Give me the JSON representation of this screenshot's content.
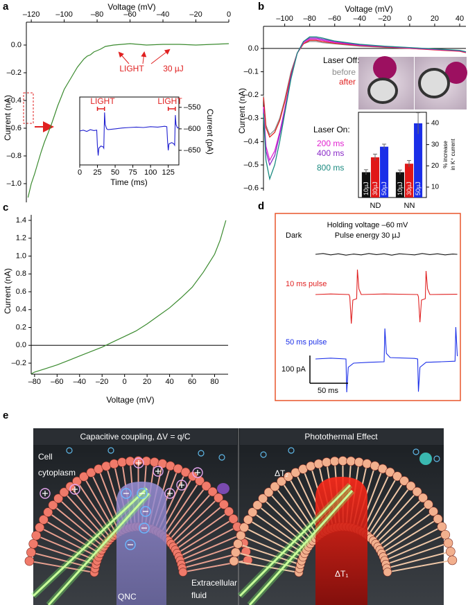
{
  "chart_data": [
    {
      "type": "line",
      "panel": "a",
      "x_label": "Voltage (mV)",
      "y_label": "Current (nA)",
      "xlim": [
        -123,
        0
      ],
      "xticks": [
        {
          "value": -120,
          "label": "–120"
        },
        {
          "value": -100,
          "label": "–100"
        },
        {
          "value": -80,
          "label": "–80"
        },
        {
          "value": -60,
          "label": "–60"
        },
        {
          "value": -40,
          "label": "–40"
        },
        {
          "value": -20,
          "label": "–20"
        },
        0
      ],
      "ylim": [
        -1.135,
        0.165
      ],
      "yticks": [
        {
          "value": 0,
          "label": "0.0"
        },
        {
          "value": -0.2,
          "label": "–0.2"
        },
        {
          "value": -0.4,
          "label": "–0.4"
        },
        {
          "value": -0.6,
          "label": "–0.6"
        },
        {
          "value": -0.8,
          "label": "–0.8"
        },
        {
          "value": -1.0,
          "label": "–1.0"
        }
      ],
      "color": "#3a8a2e",
      "x": [
        -122,
        -120,
        -118,
        -116,
        -114,
        -112,
        -110,
        -108,
        -106,
        -104,
        -102,
        -100,
        -98,
        -96,
        -94,
        -92,
        -90,
        -88,
        -86,
        -84,
        -82,
        -80,
        -78,
        -75,
        -70,
        -65,
        -60,
        -50,
        -40,
        -30,
        -20,
        -10,
        0
      ],
      "values": [
        -1.1,
        -1.0,
        -0.93,
        -0.85,
        -0.77,
        -0.7,
        -0.64,
        -0.58,
        -0.51,
        -0.44,
        -0.38,
        -0.32,
        -0.28,
        -0.24,
        -0.2,
        -0.16,
        -0.13,
        -0.1,
        -0.08,
        -0.07,
        -0.05,
        -0.04,
        -0.03,
        -0.01,
        0,
        0.005,
        0.01,
        0,
        0.005,
        0.005,
        0,
        0.005,
        0.01
      ],
      "annotations": [
        "LIGHT",
        "30 µJ"
      ],
      "annotation_color": "#e02020"
    },
    {
      "type": "line",
      "x_label": "Time (ms)",
      "y_label": "Current (pA)",
      "xlim": [
        0,
        140
      ],
      "xticks": [
        0,
        25,
        50,
        75,
        100,
        125
      ],
      "ylim": [
        -684,
        -526
      ],
      "yticks": [
        {
          "value": -550,
          "label": "–550"
        },
        {
          "value": -600,
          "label": "–600"
        },
        {
          "value": -650,
          "label": "–650"
        }
      ],
      "color": "#1f1fd0",
      "x": [
        0,
        5,
        10,
        15,
        20,
        24,
        25,
        26,
        27,
        30,
        33,
        34,
        35,
        36,
        38,
        40,
        50,
        60,
        70,
        80,
        90,
        100,
        110,
        120,
        123,
        124,
        125,
        126,
        130,
        133,
        134,
        135,
        136,
        138,
        140
      ],
      "values": [
        -605,
        -603,
        -606,
        -602,
        -604,
        -603,
        -640,
        -662,
        -645,
        -640,
        -642,
        -645,
        -562,
        -590,
        -600,
        -602,
        -600,
        -598,
        -597,
        -596,
        -597,
        -595,
        -596,
        -594,
        -595,
        -630,
        -650,
        -635,
        -632,
        -635,
        -638,
        -568,
        -590,
        -598,
        -597
      ],
      "annotations": [
        "LIGHT",
        "LIGHT"
      ],
      "annotation_color": "#e02020",
      "pulses": [
        [
          25,
          35
        ],
        [
          125,
          135
        ]
      ]
    },
    {
      "type": "line",
      "panel": "b",
      "x_label": "Voltage (mV)",
      "y_label": "Current (nA)",
      "xlim": [
        -117,
        45
      ],
      "xticks": [
        {
          "value": -100,
          "label": "–100"
        },
        {
          "value": -80,
          "label": "–80"
        },
        {
          "value": -60,
          "label": "–60"
        },
        {
          "value": -40,
          "label": "–40"
        },
        {
          "value": -20,
          "label": "–20"
        },
        0,
        20,
        40
      ],
      "ylim": [
        -0.61,
        0.095
      ],
      "yticks": [
        {
          "value": 0,
          "label": "0.0"
        },
        {
          "value": -0.1,
          "label": "–0.1"
        },
        {
          "value": -0.2,
          "label": "–0.2"
        },
        {
          "value": -0.3,
          "label": "–0.3"
        },
        {
          "value": -0.4,
          "label": "–0.4"
        },
        {
          "value": -0.5,
          "label": "–0.5"
        },
        {
          "value": -0.6,
          "label": "–0.6"
        }
      ],
      "hline": 0,
      "legend_titles": [
        "Laser Off:",
        "Laser On:"
      ],
      "x": [
        -117,
        -115,
        -112,
        -108,
        -104,
        -100,
        -95,
        -90,
        -85,
        -80,
        -75,
        -70,
        -60,
        -40,
        -20,
        0,
        20,
        40,
        45
      ],
      "series": [
        {
          "name": "before",
          "color": "#8c8c8c",
          "values": [
            -0.2,
            -0.33,
            -0.37,
            -0.35,
            -0.3,
            -0.22,
            -0.1,
            -0.02,
            0.02,
            0.03,
            0.03,
            0.025,
            0.02,
            0.01,
            0.005,
            0,
            -0.005,
            -0.01,
            -0.015
          ]
        },
        {
          "name": "after",
          "color": "#e02020",
          "values": [
            -0.21,
            -0.34,
            -0.38,
            -0.36,
            -0.31,
            -0.23,
            -0.11,
            -0.02,
            0.02,
            0.035,
            0.035,
            0.03,
            0.022,
            0.012,
            0.006,
            0,
            -0.006,
            -0.012,
            -0.018
          ]
        },
        {
          "name": "200 ms",
          "color": "#e020d0",
          "values": [
            -0.25,
            -0.42,
            -0.48,
            -0.44,
            -0.36,
            -0.26,
            -0.12,
            -0.02,
            0.025,
            0.04,
            0.04,
            0.035,
            0.026,
            0.014,
            0.008,
            0.002,
            -0.004,
            -0.01,
            -0.016
          ]
        },
        {
          "name": "400 ms",
          "color": "#8a2ac8",
          "values": [
            -0.26,
            -0.44,
            -0.5,
            -0.46,
            -0.37,
            -0.27,
            -0.12,
            -0.02,
            0.03,
            0.045,
            0.045,
            0.04,
            0.03,
            0.016,
            0.009,
            0.003,
            -0.003,
            -0.009,
            -0.015
          ]
        },
        {
          "name": "800 ms",
          "color": "#1a8a80",
          "values": [
            -0.28,
            -0.48,
            -0.56,
            -0.5,
            -0.4,
            -0.28,
            -0.13,
            -0.02,
            0.03,
            0.05,
            0.05,
            0.045,
            0.032,
            0.018,
            0.01,
            0.004,
            -0.002,
            -0.008,
            -0.014
          ]
        }
      ]
    },
    {
      "type": "bar",
      "y_label": [
        "% increase",
        "in K⁺ current"
      ],
      "categories": [
        "ND",
        "NN"
      ],
      "ylim": [
        5.1,
        45.2
      ],
      "yticks": [
        10,
        20,
        30,
        40
      ],
      "series": [
        {
          "name": "10µJ",
          "color": "#111111",
          "values": [
            17,
            17
          ],
          "errors": [
            1.2,
            1.0
          ]
        },
        {
          "name": "30µJ",
          "color": "#e01818",
          "values": [
            24,
            21
          ],
          "errors": [
            1.5,
            1.5
          ]
        },
        {
          "name": "50µJ",
          "color": "#1a2ee8",
          "values": [
            29,
            40
          ],
          "errors": [
            1.2,
            5
          ]
        }
      ]
    },
    {
      "type": "line",
      "panel": "c",
      "x_label": "Voltage (mV)",
      "y_label": "Current (nA)",
      "xlim": [
        -83,
        92
      ],
      "xticks": [
        {
          "value": -80,
          "label": "–80"
        },
        {
          "value": -60,
          "label": "–60"
        },
        {
          "value": -40,
          "label": "–40"
        },
        {
          "value": -20,
          "label": "–20"
        },
        0,
        20,
        40,
        60,
        80
      ],
      "ylim": [
        -0.324,
        1.462
      ],
      "yticks": [
        {
          "value": -0.2,
          "label": "–0.2"
        },
        {
          "value": 0,
          "label": "0.0"
        },
        0.2,
        0.4,
        0.6,
        0.8,
        {
          "value": 1.0,
          "label": "1.0"
        },
        1.2,
        1.4
      ],
      "hline": 0,
      "color": "#3a8a2e",
      "x": [
        -83,
        -80,
        -70,
        -60,
        -50,
        -40,
        -30,
        -20,
        -10,
        0,
        10,
        20,
        30,
        40,
        50,
        60,
        70,
        80,
        85,
        90
      ],
      "values": [
        -0.32,
        -0.3,
        -0.26,
        -0.22,
        -0.17,
        -0.12,
        -0.07,
        -0.02,
        0.04,
        0.1,
        0.16,
        0.24,
        0.33,
        0.42,
        0.53,
        0.65,
        0.82,
        1.02,
        1.18,
        1.4
      ]
    },
    {
      "type": "trace",
      "panel": "d",
      "title": "Holding voltage –60 mV",
      "subtitle": "Pulse energy 30 µJ",
      "scalebar": {
        "y": {
          "value": 100,
          "label": "100 pA"
        },
        "x": {
          "value": 50,
          "label": "50 ms"
        }
      },
      "series": [
        {
          "name": "Dark",
          "color": "#111111",
          "x": [
            0,
            10,
            20,
            30,
            40,
            50,
            60,
            70,
            80,
            90,
            100,
            110,
            120,
            130,
            140,
            150,
            160,
            170,
            180,
            186
          ],
          "values": [
            0,
            3,
            -2,
            2,
            -3,
            1,
            -2,
            3,
            -1,
            2,
            -3,
            2,
            0,
            -2,
            3,
            -1,
            2,
            -2,
            1,
            0
          ]
        },
        {
          "name": "10 ms pulse",
          "color": "#e02020",
          "x": [
            0,
            20,
            44,
            45,
            47,
            49,
            54,
            55,
            57,
            60,
            90,
            134,
            135,
            137,
            139,
            144,
            145,
            147,
            150,
            186
          ],
          "values": [
            0,
            2,
            0,
            -8,
            -105,
            -20,
            -15,
            90,
            20,
            0,
            2,
            0,
            -8,
            -100,
            -20,
            -15,
            85,
            20,
            0,
            1
          ]
        },
        {
          "name": "50 ms pulse",
          "color": "#1a2ee8",
          "x": [
            0,
            20,
            40,
            41,
            43,
            50,
            70,
            90,
            91,
            93,
            98,
            130,
            134,
            135,
            137,
            145,
            165,
            183,
            184,
            186
          ],
          "values": [
            0,
            3,
            0,
            -120,
            -30,
            -15,
            -12,
            -10,
            110,
            20,
            5,
            2,
            0,
            -118,
            -30,
            -12,
            -10,
            -8,
            115,
            10
          ]
        }
      ]
    }
  ],
  "illustration": {
    "panel": "e",
    "left_title": "Capacitive coupling, ΔV = q/C",
    "right_title": "Photothermal Effect",
    "labels": [
      "Cell",
      "cytoplasm",
      "QNC",
      "Extracellular",
      "fluid",
      "ΔT₂",
      "ΔT₁"
    ]
  }
}
